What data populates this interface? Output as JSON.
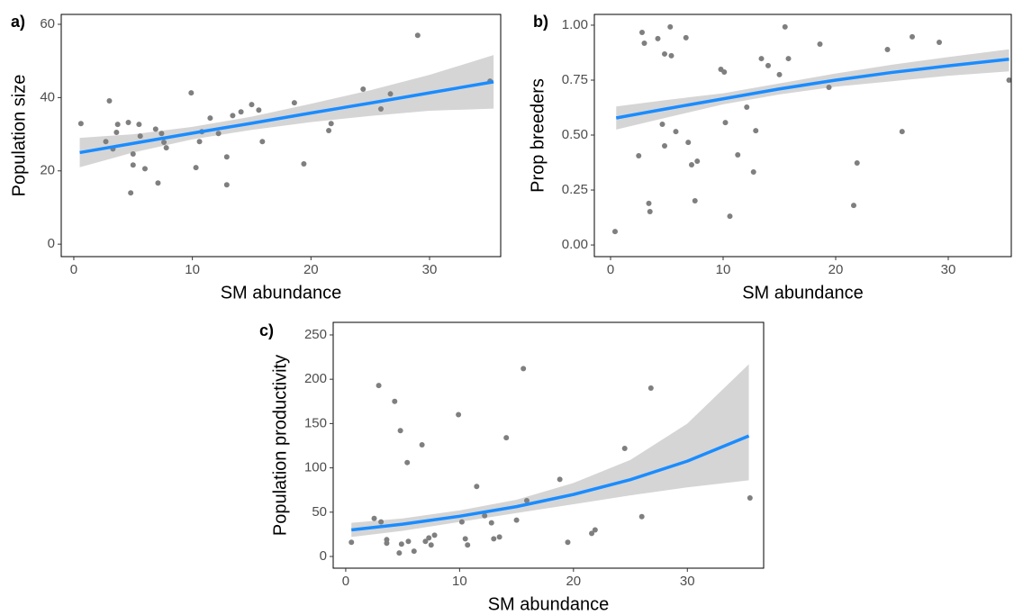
{
  "chart_data": [
    {
      "type": "scatter",
      "panel_label": "a)",
      "xlabel": "SM abundance",
      "ylabel": "Population size",
      "xlim": [
        -1.06,
        36.0
      ],
      "ylim": [
        -3.4,
        62.7
      ],
      "xticks": [
        0,
        10,
        20,
        30
      ],
      "yticks": [
        0,
        20,
        40,
        60
      ],
      "points": {
        "color": "#7f7f7f",
        "x": [
          0.6,
          2.7,
          3.0,
          3.3,
          3.6,
          3.7,
          4.6,
          4.8,
          5.0,
          5.0,
          5.5,
          5.6,
          6.0,
          6.9,
          7.1,
          7.4,
          7.6,
          7.8,
          9.9,
          10.3,
          10.6,
          10.8,
          11.5,
          12.2,
          12.9,
          12.9,
          13.4,
          14.1,
          15.0,
          15.6,
          15.9,
          18.6,
          19.4,
          21.5,
          21.7,
          24.4,
          25.9,
          26.7,
          29.0,
          35.1
        ],
        "values": [
          32.9,
          28.0,
          39.1,
          26.0,
          30.5,
          32.7,
          33.2,
          14.0,
          24.6,
          21.6,
          32.7,
          29.5,
          20.6,
          31.4,
          16.7,
          30.2,
          27.8,
          26.3,
          41.3,
          20.9,
          28.0,
          30.7,
          34.4,
          30.2,
          23.8,
          16.2,
          35.1,
          36.1,
          38.1,
          36.6,
          28.0,
          38.6,
          21.9,
          31.0,
          32.9,
          42.3,
          36.9,
          41.0,
          57.0,
          44.5
        ]
      },
      "fit": {
        "color": "#1a8cff",
        "band_color": "#d3d3d3",
        "x": [
          0.5,
          5,
          10,
          15,
          20,
          25,
          30,
          35.4
        ],
        "values": [
          25.0,
          27.5,
          30.3,
          33.0,
          35.8,
          38.5,
          41.3,
          44.3
        ],
        "lower": [
          21.0,
          25.0,
          28.6,
          31.2,
          33.3,
          35.0,
          36.4,
          37.0
        ],
        "upper": [
          29.0,
          30.0,
          32.0,
          34.8,
          38.3,
          42.0,
          46.2,
          51.6
        ]
      }
    },
    {
      "type": "scatter",
      "panel_label": "b)",
      "xlabel": "SM abundance",
      "ylabel": "Prop breeders",
      "xlim": [
        -1.44,
        35.6
      ],
      "ylim": [
        -0.053,
        1.049
      ],
      "xticks": [
        0,
        10,
        20,
        30
      ],
      "yticks": [
        {
          "value": 0,
          "label": "0.00"
        },
        0.25,
        {
          "value": 0.5,
          "label": "0.50"
        },
        0.75,
        {
          "value": 1,
          "label": "1.00"
        }
      ],
      "points": {
        "color": "#7f7f7f",
        "x": [
          0.4,
          2.5,
          2.8,
          3.0,
          3.4,
          3.5,
          4.2,
          4.6,
          4.8,
          4.8,
          5.3,
          5.4,
          5.8,
          6.7,
          6.9,
          7.2,
          7.5,
          7.7,
          9.8,
          10.1,
          10.2,
          10.6,
          11.3,
          12.1,
          12.7,
          12.9,
          13.4,
          14.0,
          15.0,
          15.5,
          15.8,
          18.6,
          19.4,
          21.6,
          21.9,
          24.6,
          25.9,
          26.8,
          29.2,
          35.4
        ],
        "values": [
          0.061,
          0.406,
          0.967,
          0.918,
          0.189,
          0.152,
          0.939,
          0.549,
          0.869,
          0.451,
          0.992,
          0.861,
          0.516,
          0.943,
          0.467,
          0.365,
          0.201,
          0.381,
          0.799,
          0.787,
          0.557,
          0.131,
          0.41,
          0.627,
          0.332,
          0.52,
          0.848,
          0.816,
          0.775,
          0.992,
          0.848,
          0.914,
          0.717,
          0.18,
          0.373,
          0.889,
          0.516,
          0.947,
          0.922,
          0.75
        ]
      },
      "fit": {
        "color": "#1a8cff",
        "band_color": "#d3d3d3",
        "x": [
          0.5,
          5,
          10,
          15,
          20,
          25,
          30,
          35.4
        ],
        "values": [
          0.578,
          0.62,
          0.665,
          0.71,
          0.75,
          0.785,
          0.815,
          0.845
        ],
        "lower": [
          0.525,
          0.58,
          0.64,
          0.685,
          0.72,
          0.745,
          0.77,
          0.79
        ],
        "upper": [
          0.63,
          0.66,
          0.69,
          0.735,
          0.78,
          0.82,
          0.855,
          0.89
        ]
      }
    },
    {
      "type": "scatter",
      "panel_label": "c)",
      "xlabel": "SM abundance",
      "ylabel": "Population productivity",
      "xlim": [
        -1.1,
        36.7
      ],
      "ylim": [
        -13.2,
        264.2
      ],
      "xticks": [
        0,
        10,
        20,
        30
      ],
      "yticks": [
        0,
        50,
        100,
        150,
        200,
        250
      ],
      "points": {
        "color": "#7f7f7f",
        "x": [
          0.5,
          2.5,
          2.9,
          3.1,
          3.6,
          3.6,
          4.3,
          4.8,
          4.7,
          4.9,
          5.4,
          5.5,
          6.0,
          6.7,
          7.0,
          7.3,
          7.5,
          7.8,
          9.9,
          10.2,
          10.5,
          10.7,
          11.5,
          12.2,
          12.8,
          13.0,
          13.5,
          14.1,
          15.0,
          15.6,
          15.9,
          18.8,
          19.5,
          21.6,
          21.9,
          24.5,
          26.0,
          26.8,
          35.5
        ],
        "values": [
          16,
          43,
          193,
          39,
          19,
          15,
          175,
          142,
          4,
          14,
          106,
          17,
          6,
          126,
          17,
          21,
          13,
          24,
          160,
          39,
          20,
          13,
          79,
          46,
          38,
          20,
          22,
          134,
          41,
          212,
          63,
          87,
          16,
          26,
          30,
          122,
          45,
          190,
          66
        ]
      },
      "fit": {
        "color": "#1a8cff",
        "band_color": "#d3d3d3",
        "x": [
          0.5,
          5,
          10,
          15,
          20,
          25,
          30,
          35.4
        ],
        "values": [
          30,
          36.5,
          45.4,
          56.3,
          70,
          86.7,
          107.6,
          136
        ],
        "lower": [
          22,
          29,
          39,
          49,
          59,
          69,
          78,
          86
        ],
        "upper": [
          38,
          43,
          52,
          64,
          83,
          109,
          150,
          217
        ]
      }
    }
  ]
}
